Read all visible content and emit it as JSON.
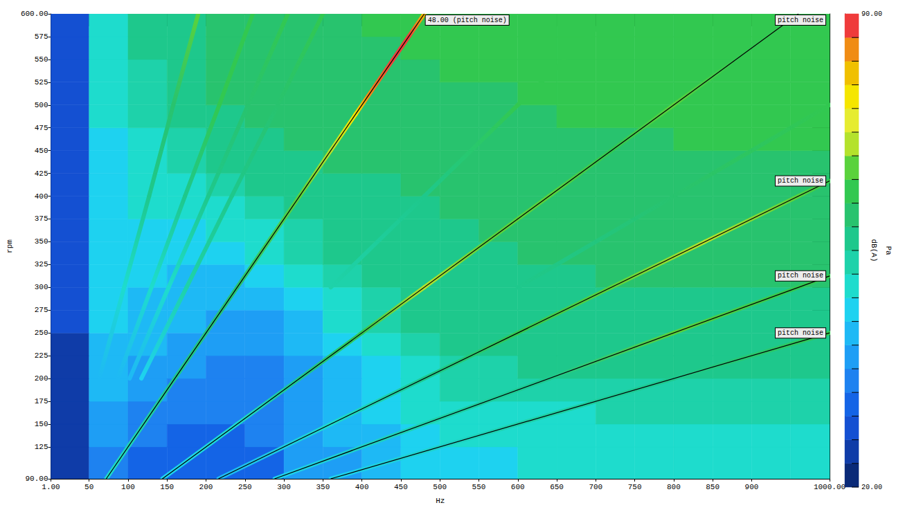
{
  "chart_data": {
    "type": "heatmap",
    "x_label": "Hz",
    "y_label": "rpm",
    "xlim": [
      1,
      1000
    ],
    "xticks": [
      {
        "value": 1,
        "label": "1.00"
      },
      50,
      100,
      150,
      200,
      250,
      300,
      350,
      400,
      450,
      500,
      550,
      600,
      650,
      700,
      750,
      800,
      850,
      900,
      {
        "value": 1000,
        "label": "1000.00"
      }
    ],
    "ylim": [
      90,
      600
    ],
    "yticks": [
      {
        "value": 90,
        "label": "90.00"
      },
      125,
      150,
      175,
      200,
      225,
      250,
      275,
      300,
      325,
      350,
      375,
      400,
      425,
      450,
      475,
      500,
      525,
      550,
      575,
      {
        "value": 600,
        "label": "600.00"
      }
    ],
    "grid": false,
    "line_style": "solid",
    "x_bins": [
      1,
      50,
      100,
      150,
      200,
      250,
      300,
      350,
      400,
      450,
      500,
      550,
      600,
      650,
      700,
      750,
      800,
      850,
      900,
      950,
      1000
    ],
    "y_bins": [
      90,
      125,
      150,
      175,
      200,
      225,
      250,
      275,
      300,
      325,
      350,
      375,
      400,
      425,
      450,
      475,
      500,
      525,
      550,
      575,
      600
    ],
    "cells": [
      [
        25,
        35,
        33,
        33,
        32,
        33,
        38,
        40,
        42,
        45,
        46,
        47,
        48,
        48,
        49,
        49,
        50,
        50,
        50,
        50
      ],
      [
        25,
        38,
        34,
        33,
        33,
        34,
        38,
        41,
        43,
        46,
        48,
        48,
        49,
        49,
        50,
        50,
        51,
        51,
        51,
        51
      ],
      [
        25,
        40,
        36,
        35,
        34,
        35,
        38,
        42,
        45,
        48,
        50,
        50,
        51,
        51,
        52,
        52,
        52,
        52,
        52,
        52
      ],
      [
        25,
        42,
        38,
        36,
        35,
        36,
        38,
        42,
        46,
        50,
        52,
        52,
        53,
        53,
        54,
        54,
        54,
        54,
        54,
        54
      ],
      [
        26,
        43,
        40,
        38,
        36,
        37,
        40,
        44,
        47,
        51,
        53,
        54,
        55,
        55,
        55,
        55,
        55,
        55,
        55,
        55
      ],
      [
        26,
        44,
        42,
        40,
        38,
        38,
        41,
        46,
        50,
        53,
        55,
        56,
        57,
        57,
        57,
        57,
        57,
        57,
        57,
        57
      ],
      [
        27,
        45,
        43,
        42,
        40,
        40,
        43,
        48,
        52,
        55,
        57,
        57,
        58,
        58,
        58,
        58,
        58,
        58,
        58,
        58
      ],
      [
        27,
        45,
        44,
        43,
        41,
        43,
        47,
        51,
        54,
        56,
        57,
        58,
        58,
        58,
        58,
        58,
        58,
        58,
        58,
        58
      ],
      [
        27,
        45,
        45,
        44,
        43,
        45,
        50,
        53,
        55,
        57,
        58,
        58,
        58,
        58,
        59,
        59,
        59,
        59,
        59,
        59
      ],
      [
        28,
        46,
        46,
        45,
        45,
        48,
        52,
        55,
        56,
        57,
        58,
        58,
        59,
        59,
        59,
        59,
        59,
        59,
        59,
        59
      ],
      [
        28,
        46,
        47,
        47,
        48,
        51,
        54,
        56,
        57,
        58,
        58,
        59,
        59,
        59,
        59,
        60,
        60,
        60,
        60,
        60
      ],
      [
        28,
        46,
        48,
        48,
        50,
        53,
        55,
        57,
        58,
        58,
        59,
        59,
        59,
        60,
        60,
        60,
        60,
        60,
        60,
        60
      ],
      [
        28,
        46,
        49,
        50,
        52,
        55,
        57,
        58,
        58,
        59,
        59,
        59,
        60,
        60,
        60,
        60,
        60,
        60,
        60,
        60
      ],
      [
        28,
        47,
        50,
        52,
        55,
        57,
        58,
        59,
        59,
        59,
        59,
        60,
        60,
        60,
        61,
        61,
        61,
        61,
        61,
        61
      ],
      [
        28,
        47,
        51,
        54,
        57,
        58,
        59,
        59,
        60,
        60,
        60,
        60,
        61,
        61,
        61,
        61,
        62,
        62,
        62,
        62
      ],
      [
        28,
        48,
        52,
        56,
        58,
        59,
        59,
        60,
        60,
        60,
        61,
        61,
        61,
        62,
        62,
        62,
        62,
        62,
        62,
        62
      ],
      [
        29,
        48,
        53,
        57,
        59,
        59,
        60,
        60,
        61,
        61,
        61,
        61,
        62,
        62,
        63,
        63,
        63,
        63,
        63,
        63
      ],
      [
        29,
        48,
        54,
        58,
        59,
        60,
        60,
        61,
        61,
        61,
        62,
        62,
        62,
        63,
        63,
        63,
        63,
        63,
        63,
        63
      ],
      [
        29,
        49,
        55,
        58,
        60,
        60,
        61,
        61,
        61,
        62,
        62,
        62,
        63,
        63,
        63,
        63,
        64,
        64,
        63,
        63
      ],
      [
        29,
        49,
        55,
        58,
        60,
        61,
        61,
        61,
        62,
        62,
        62,
        63,
        63,
        63,
        63,
        64,
        64,
        64,
        63,
        63
      ]
    ],
    "ridges": [
      {
        "points": [
          [
            72,
            90,
            48
          ],
          [
            160,
            200,
            56
          ],
          [
            240,
            300,
            60
          ],
          [
            320,
            400,
            66
          ],
          [
            360,
            450,
            70
          ],
          [
            392,
            490,
            76
          ],
          [
            408,
            510,
            84
          ],
          [
            440,
            550,
            88
          ],
          [
            460,
            575,
            87
          ],
          [
            480,
            600,
            80
          ]
        ]
      },
      {
        "points": [
          [
            144,
            90,
            45
          ],
          [
            240,
            150,
            50
          ],
          [
            320,
            200,
            55
          ],
          [
            400,
            250,
            62
          ],
          [
            480,
            300,
            70
          ],
          [
            560,
            350,
            68
          ],
          [
            640,
            400,
            66
          ],
          [
            720,
            450,
            65
          ],
          [
            800,
            500,
            66
          ],
          [
            880,
            550,
            64
          ],
          [
            960,
            600,
            62
          ]
        ]
      },
      {
        "points": [
          [
            216,
            90,
            42
          ],
          [
            360,
            150,
            50
          ],
          [
            480,
            200,
            56
          ],
          [
            600,
            250,
            62
          ],
          [
            720,
            300,
            68
          ],
          [
            840,
            350,
            70
          ],
          [
            960,
            400,
            66
          ],
          [
            1000,
            416.7,
            64
          ]
        ]
      },
      {
        "points": [
          [
            288,
            90,
            45
          ],
          [
            480,
            150,
            52
          ],
          [
            640,
            200,
            58
          ],
          [
            800,
            250,
            66
          ],
          [
            960,
            300,
            64
          ],
          [
            1000,
            312.5,
            62
          ]
        ]
      },
      {
        "points": [
          [
            360,
            90,
            45
          ],
          [
            600,
            150,
            52
          ],
          [
            800,
            200,
            58
          ],
          [
            1000,
            250,
            62
          ]
        ]
      },
      {
        "points": [
          [
            63,
            200,
            42
          ],
          [
            95,
            300,
            48
          ],
          [
            127,
            400,
            55
          ],
          [
            158,
            500,
            60
          ],
          [
            190,
            600,
            66
          ]
        ]
      },
      {
        "points": [
          [
            87,
            200,
            44
          ],
          [
            130,
            300,
            50
          ],
          [
            173,
            400,
            56
          ],
          [
            217,
            500,
            62
          ],
          [
            260,
            600,
            64
          ]
        ]
      },
      {
        "points": [
          [
            102,
            200,
            44
          ],
          [
            152,
            300,
            50
          ],
          [
            203,
            400,
            55
          ],
          [
            254,
            500,
            60
          ],
          [
            305,
            600,
            62
          ]
        ]
      },
      {
        "points": [
          [
            117,
            200,
            45
          ],
          [
            175,
            300,
            52
          ],
          [
            233,
            400,
            56
          ],
          [
            292,
            500,
            60
          ],
          [
            350,
            600,
            63
          ]
        ]
      },
      {
        "points": [
          [
            360,
            300,
            54
          ],
          [
            480,
            400,
            58
          ],
          [
            600,
            500,
            63
          ],
          [
            720,
            600,
            65
          ]
        ]
      },
      {
        "points": [
          [
            600,
            300,
            56
          ],
          [
            800,
            400,
            60
          ],
          [
            1000,
            500,
            64
          ]
        ]
      }
    ],
    "lines": [
      {
        "name": "48.00 (pitch noise)",
        "color": "#000000",
        "x": [
          72,
          480
        ],
        "y": [
          90,
          600
        ]
      },
      {
        "name": "pitch noise",
        "color": "#000000",
        "x": [
          144,
          960
        ],
        "y": [
          90,
          600
        ]
      },
      {
        "name": "pitch noise",
        "color": "#000000",
        "x": [
          216,
          1000
        ],
        "y": [
          90,
          416.7
        ]
      },
      {
        "name": "pitch noise",
        "color": "#000000",
        "x": [
          288,
          1000
        ],
        "y": [
          90,
          312.5
        ]
      },
      {
        "name": "pitch noise",
        "color": "#000000",
        "x": [
          360,
          1000
        ],
        "y": [
          90,
          250
        ]
      }
    ],
    "colorbar": {
      "range": [
        20,
        90
      ],
      "ticks": [
        {
          "value": 20,
          "label": "20.00"
        },
        {
          "value": 90,
          "label": "90.00"
        }
      ],
      "label": "dB(A)",
      "unit": "Pa",
      "colors": [
        "#0a2a78",
        "#0f3ca8",
        "#1450d2",
        "#1464e6",
        "#1e82f0",
        "#1e9ef5",
        "#1eb9f5",
        "#1ed2f0",
        "#1edccd",
        "#1ed2aa",
        "#1ec88c",
        "#28c36e",
        "#32c850",
        "#5ad23c",
        "#b4e22c",
        "#e6ec30",
        "#f5e600",
        "#f0c000",
        "#f08c14",
        "#ef3b3b"
      ]
    }
  }
}
